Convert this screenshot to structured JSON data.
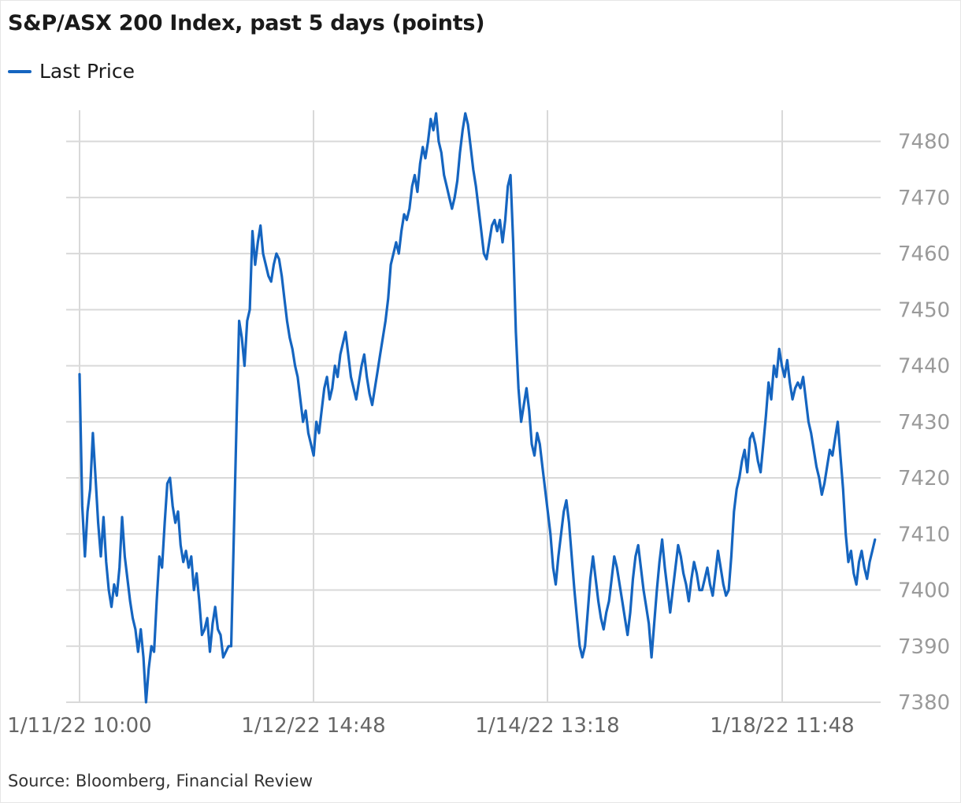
{
  "title": "S&P/ASX 200 Index, past 5 days (points)",
  "legend": {
    "label": "Last Price",
    "color": "#1565c0"
  },
  "source": "Source: Bloomberg, Financial Review",
  "chart_data": {
    "type": "line",
    "title": "S&P/ASX 200 Index, past 5 days (points)",
    "ylim": [
      7380,
      7485
    ],
    "yticks": [
      7380,
      7390,
      7400,
      7410,
      7420,
      7430,
      7440,
      7450,
      7460,
      7470,
      7480
    ],
    "xticks": [
      "1/11/22 10:00",
      "1/12/22 14:48",
      "1/14/22 13:18",
      "1/18/22 11:48"
    ],
    "grid": true,
    "legend_position": "top-left",
    "series": [
      {
        "name": "Last Price",
        "color": "#1565c0",
        "x_range": [
          0,
          3.4
        ],
        "values": [
          7438.5,
          7415,
          7406,
          7414,
          7418,
          7428,
          7420,
          7412,
          7406,
          7413,
          7405,
          7400,
          7397,
          7401,
          7399,
          7404,
          7413,
          7406,
          7402,
          7398,
          7395,
          7393,
          7389,
          7393,
          7388,
          7380,
          7386,
          7390,
          7389,
          7398,
          7406,
          7404,
          7412,
          7419,
          7420,
          7415,
          7412,
          7414,
          7408,
          7405,
          7407,
          7404,
          7406,
          7400,
          7403,
          7398,
          7392,
          7393,
          7395,
          7389,
          7394,
          7397,
          7393,
          7392,
          7388,
          7389,
          7390,
          7390,
          7410,
          7430,
          7448,
          7445,
          7440,
          7448,
          7450,
          7464,
          7458,
          7462,
          7465,
          7460,
          7458,
          7456,
          7455,
          7458,
          7460,
          7459,
          7456,
          7452,
          7448,
          7445,
          7443,
          7440,
          7438,
          7434,
          7430,
          7432,
          7428,
          7426,
          7424,
          7430,
          7428,
          7432,
          7436,
          7438,
          7434,
          7436,
          7440,
          7438,
          7442,
          7444,
          7446,
          7442,
          7438,
          7436,
          7434,
          7437,
          7440,
          7442,
          7438,
          7435,
          7433,
          7436,
          7439,
          7442,
          7445,
          7448,
          7452,
          7458,
          7460,
          7462,
          7460,
          7464,
          7467,
          7466,
          7468,
          7472,
          7474,
          7471,
          7476,
          7479,
          7477,
          7480,
          7484,
          7482,
          7485,
          7480,
          7478,
          7474,
          7472,
          7470,
          7468,
          7470,
          7473,
          7478,
          7482,
          7485,
          7483,
          7479,
          7475,
          7472,
          7468,
          7464,
          7460,
          7459,
          7462,
          7465,
          7466,
          7464,
          7466,
          7462,
          7466,
          7472,
          7474,
          7462,
          7446,
          7436,
          7430,
          7433,
          7436,
          7432,
          7426,
          7424,
          7428,
          7426,
          7422,
          7418,
          7414,
          7410,
          7404,
          7401,
          7406,
          7410,
          7414,
          7416,
          7412,
          7406,
          7400,
          7395,
          7390,
          7388,
          7390,
          7396,
          7402,
          7406,
          7402,
          7398,
          7395,
          7393,
          7396,
          7398,
          7402,
          7406,
          7404,
          7401,
          7398,
          7395,
          7392,
          7396,
          7402,
          7406,
          7408,
          7404,
          7400,
          7397,
          7394,
          7388,
          7394,
          7400,
          7405,
          7409,
          7404,
          7400,
          7396,
          7400,
          7404,
          7408,
          7406,
          7403,
          7401,
          7398,
          7402,
          7405,
          7403,
          7400,
          7400,
          7402,
          7404,
          7401,
          7399,
          7403,
          7407,
          7404,
          7401,
          7399,
          7400,
          7406,
          7414,
          7418,
          7420,
          7423,
          7425,
          7421,
          7427,
          7428,
          7426,
          7423,
          7421,
          7426,
          7431,
          7437,
          7434,
          7440,
          7438,
          7443,
          7440,
          7438,
          7441,
          7437,
          7434,
          7436,
          7437,
          7436,
          7438,
          7434,
          7430,
          7428,
          7425,
          7422,
          7420,
          7417,
          7419,
          7422,
          7425,
          7424,
          7427,
          7430,
          7424,
          7418,
          7410,
          7405,
          7407,
          7403,
          7401,
          7405,
          7407,
          7404,
          7402,
          7405,
          7407,
          7409
        ]
      }
    ]
  }
}
